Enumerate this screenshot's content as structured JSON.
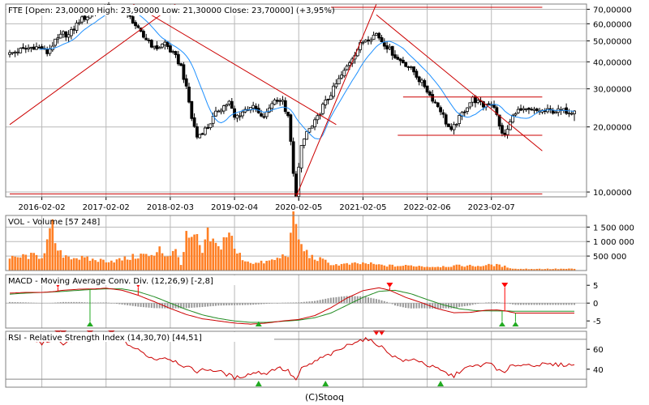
{
  "header": {
    "ticker": "FTE",
    "ohlc_text": "FTE [Open: 23,00000  High: 23,90000  Low: 21,30000  Close: 23,70000] (+3,95%)"
  },
  "footer": {
    "credit": "(C)Stooq"
  },
  "colors": {
    "up_candle": "#ffffff",
    "down_candle": "#000000",
    "moving_average": "#1e90ff",
    "trendline": "#cc0000",
    "volume_bar": "#ff7f24",
    "macd_line": "#cc0000",
    "signal_line": "#228b22",
    "histogram": "#999999",
    "rsi_line": "#cc0000",
    "sell_marker": "#ff0000",
    "buy_marker": "#22aa22",
    "grid": "#b8b8b8"
  },
  "chart_data": [
    {
      "type": "candlestick",
      "title": "FTE [Open: 23,00000  High: 23,90000  Low: 21,30000  Close: 23,70000] (+3,95%)",
      "scale": "log",
      "ylim": [
        9.5,
        74
      ],
      "y_ticks": [
        10,
        20,
        30,
        40,
        50,
        60,
        70
      ],
      "y_tick_labels": [
        "10,00000",
        "20,00000",
        "30,00000",
        "40,00000",
        "50,00000",
        "60,00000",
        "70,00000"
      ],
      "x_tick_labels": [
        "2016-02-02",
        "2017-02-02",
        "2018-02-03",
        "2019-02-04",
        "2020-02-05",
        "2021-02-05",
        "2022-02-06",
        "2023-02-07"
      ],
      "x_tick_indices": [
        12,
        36,
        60,
        84,
        108,
        132,
        156,
        180
      ],
      "first_index": 0,
      "last_index": 211,
      "last": {
        "open": 23.0,
        "high": 23.9,
        "low": 21.3,
        "close": 23.7,
        "change_pct": 3.95
      },
      "grid": true,
      "moving_average_period": 12,
      "anchors": [
        [
          0,
          43.5
        ],
        [
          3,
          45
        ],
        [
          6,
          46
        ],
        [
          9,
          47
        ],
        [
          12,
          46
        ],
        [
          14,
          44
        ],
        [
          16,
          48
        ],
        [
          18,
          51
        ],
        [
          20,
          54
        ],
        [
          22,
          53
        ],
        [
          24,
          57
        ],
        [
          26,
          62
        ],
        [
          28,
          64
        ],
        [
          30,
          66
        ],
        [
          32,
          68
        ],
        [
          34,
          70
        ],
        [
          36,
          72
        ],
        [
          38,
          71
        ],
        [
          40,
          68
        ],
        [
          42,
          70
        ],
        [
          44,
          66
        ],
        [
          46,
          62
        ],
        [
          48,
          56
        ],
        [
          50,
          52
        ],
        [
          52,
          50
        ],
        [
          54,
          46
        ],
        [
          56,
          47
        ],
        [
          58,
          49
        ],
        [
          60,
          45
        ],
        [
          62,
          42
        ],
        [
          64,
          38
        ],
        [
          66,
          30
        ],
        [
          68,
          22
        ],
        [
          70,
          18
        ],
        [
          72,
          19
        ],
        [
          74,
          20
        ],
        [
          76,
          22
        ],
        [
          78,
          24
        ],
        [
          80,
          25
        ],
        [
          82,
          26
        ],
        [
          84,
          22
        ],
        [
          86,
          23
        ],
        [
          88,
          24
        ],
        [
          90,
          25
        ],
        [
          92,
          24
        ],
        [
          94,
          22
        ],
        [
          96,
          23
        ],
        [
          98,
          26
        ],
        [
          100,
          27
        ],
        [
          102,
          26
        ],
        [
          104,
          22
        ],
        [
          106,
          12
        ],
        [
          107,
          9.8
        ],
        [
          109,
          16
        ],
        [
          111,
          19
        ],
        [
          113,
          20
        ],
        [
          115,
          22
        ],
        [
          117,
          25
        ],
        [
          119,
          27
        ],
        [
          121,
          30
        ],
        [
          123,
          33
        ],
        [
          125,
          36
        ],
        [
          127,
          40
        ],
        [
          129,
          44
        ],
        [
          131,
          48
        ],
        [
          133,
          51
        ],
        [
          135,
          52
        ],
        [
          137,
          54
        ],
        [
          139,
          50
        ],
        [
          141,
          47
        ],
        [
          143,
          44
        ],
        [
          145,
          41
        ],
        [
          147,
          40
        ],
        [
          149,
          38
        ],
        [
          151,
          36
        ],
        [
          153,
          33
        ],
        [
          155,
          31
        ],
        [
          157,
          28
        ],
        [
          159,
          26
        ],
        [
          161,
          24
        ],
        [
          163,
          21
        ],
        [
          165,
          19
        ],
        [
          167,
          21
        ],
        [
          169,
          23
        ],
        [
          171,
          25
        ],
        [
          173,
          27
        ],
        [
          175,
          26
        ],
        [
          177,
          25
        ],
        [
          179,
          26
        ],
        [
          181,
          25
        ],
        [
          183,
          20
        ],
        [
          185,
          18
        ],
        [
          187,
          21
        ],
        [
          189,
          23.7
        ]
      ],
      "trendlines": [
        {
          "from": [
            0,
            20.5
          ],
          "to": [
            62,
            74
          ]
        },
        {
          "from": [
            46,
            74
          ],
          "to": [
            122,
            20.5
          ]
        },
        {
          "from": [
            107,
            9.5
          ],
          "to": [
            137,
            74
          ]
        },
        {
          "from": [
            137,
            66
          ],
          "to": [
            199,
            15.5
          ]
        },
        {
          "from": [
            0,
            71.5
          ],
          "to": [
            199,
            71.5
          ]
        },
        {
          "from": [
            0,
            9.8
          ],
          "to": [
            199,
            9.8
          ]
        },
        {
          "from": [
            147,
            27.5
          ],
          "to": [
            199,
            27.5
          ]
        },
        {
          "from": [
            145,
            18.3
          ],
          "to": [
            199,
            18.3
          ]
        }
      ]
    },
    {
      "type": "bar",
      "title": "VOL - Volume [57 248]",
      "series_name": "Volume",
      "last_value": 57248,
      "ylim": [
        0,
        1900000
      ],
      "y_ticks": [
        500000,
        1000000,
        1500000
      ],
      "y_tick_labels": [
        "500 000",
        "1 000 000",
        "1 500 000"
      ],
      "anchors": [
        [
          0,
          400000
        ],
        [
          6,
          500000
        ],
        [
          12,
          500000
        ],
        [
          16,
          1450000
        ],
        [
          18,
          600000
        ],
        [
          22,
          500000
        ],
        [
          28,
          400000
        ],
        [
          34,
          350000
        ],
        [
          40,
          350000
        ],
        [
          44,
          420000
        ],
        [
          50,
          550000
        ],
        [
          54,
          450000
        ],
        [
          56,
          900000
        ],
        [
          58,
          500000
        ],
        [
          62,
          650000
        ],
        [
          64,
          250000
        ],
        [
          66,
          1100000
        ],
        [
          70,
          1050000
        ],
        [
          72,
          600000
        ],
        [
          74,
          1200000
        ],
        [
          78,
          750000
        ],
        [
          82,
          1400000
        ],
        [
          84,
          700000
        ],
        [
          88,
          350000
        ],
        [
          92,
          250000
        ],
        [
          96,
          300000
        ],
        [
          100,
          400000
        ],
        [
          104,
          600000
        ],
        [
          106,
          1650000
        ],
        [
          107,
          1550000
        ],
        [
          109,
          800000
        ],
        [
          113,
          450000
        ],
        [
          117,
          350000
        ],
        [
          121,
          200000
        ],
        [
          127,
          220000
        ],
        [
          133,
          250000
        ],
        [
          139,
          180000
        ],
        [
          145,
          160000
        ],
        [
          151,
          170000
        ],
        [
          157,
          130000
        ],
        [
          163,
          150000
        ],
        [
          169,
          170000
        ],
        [
          175,
          160000
        ],
        [
          181,
          200000
        ],
        [
          185,
          140000
        ],
        [
          189,
          57248
        ]
      ]
    },
    {
      "type": "line",
      "title": "MACD - Moving Average Conv. Div. (12,26,9) [-2,8]",
      "series": [
        {
          "name": "MACD",
          "value_last": -2.8,
          "role": "macd"
        },
        {
          "name": "Signal",
          "role": "signal"
        },
        {
          "name": "Histogram",
          "role": "histogram"
        }
      ],
      "ylim": [
        -7,
        8
      ],
      "y_ticks": [
        -5,
        0,
        5
      ],
      "y_tick_labels": [
        "-5",
        "0",
        "5"
      ],
      "reference_line": 0,
      "macd_anchors": [
        [
          0,
          2.8
        ],
        [
          6,
          3.0
        ],
        [
          12,
          3.0
        ],
        [
          16,
          3.2
        ],
        [
          20,
          3.6
        ],
        [
          26,
          3.9
        ],
        [
          32,
          4.0
        ],
        [
          36,
          4.2
        ],
        [
          42,
          3.6
        ],
        [
          48,
          2.2
        ],
        [
          54,
          0.4
        ],
        [
          60,
          -1.5
        ],
        [
          66,
          -3.2
        ],
        [
          72,
          -4.4
        ],
        [
          78,
          -5.0
        ],
        [
          84,
          -5.6
        ],
        [
          90,
          -5.9
        ],
        [
          96,
          -5.6
        ],
        [
          102,
          -5.0
        ],
        [
          108,
          -4.6
        ],
        [
          114,
          -3.5
        ],
        [
          120,
          -1.3
        ],
        [
          126,
          1.4
        ],
        [
          132,
          3.5
        ],
        [
          138,
          4.3
        ],
        [
          142,
          3.6
        ],
        [
          148,
          1.6
        ],
        [
          154,
          0.1
        ],
        [
          160,
          -1.6
        ],
        [
          166,
          -2.7
        ],
        [
          172,
          -2.6
        ],
        [
          178,
          -2.0
        ],
        [
          182,
          -1.9
        ],
        [
          186,
          -2.3
        ],
        [
          189,
          -2.8
        ]
      ],
      "signal_anchors": [
        [
          0,
          2.5
        ],
        [
          6,
          2.8
        ],
        [
          12,
          3.0
        ],
        [
          18,
          3.2
        ],
        [
          24,
          3.5
        ],
        [
          30,
          3.8
        ],
        [
          36,
          4.0
        ],
        [
          42,
          4.0
        ],
        [
          48,
          3.2
        ],
        [
          54,
          1.8
        ],
        [
          60,
          0.0
        ],
        [
          66,
          -1.8
        ],
        [
          72,
          -3.3
        ],
        [
          78,
          -4.3
        ],
        [
          84,
          -5.0
        ],
        [
          90,
          -5.4
        ],
        [
          96,
          -5.4
        ],
        [
          102,
          -5.1
        ],
        [
          108,
          -4.8
        ],
        [
          114,
          -4.1
        ],
        [
          120,
          -2.8
        ],
        [
          126,
          -0.6
        ],
        [
          132,
          1.6
        ],
        [
          138,
          3.3
        ],
        [
          144,
          3.6
        ],
        [
          150,
          2.6
        ],
        [
          156,
          1.0
        ],
        [
          162,
          -0.5
        ],
        [
          168,
          -1.6
        ],
        [
          174,
          -2.1
        ],
        [
          180,
          -2.2
        ],
        [
          186,
          -2.2
        ],
        [
          189,
          -2.3
        ]
      ],
      "sell_signals": [
        18,
        48,
        142,
        185
      ],
      "buy_signals": [
        30,
        93,
        184,
        189
      ]
    },
    {
      "type": "line",
      "title": "RSI - Relative Strength Index (14,30,70) [44,51]",
      "series_name": "RSI",
      "last_value": 44.51,
      "ylim": [
        22,
        78
      ],
      "y_ticks": [
        40,
        60
      ],
      "y_tick_labels": [
        "40",
        "60"
      ],
      "levels": [
        30,
        70
      ],
      "anchors": [
        [
          0,
          72
        ],
        [
          5,
          70
        ],
        [
          8,
          71
        ],
        [
          10,
          68
        ],
        [
          12,
          66
        ],
        [
          16,
          70
        ],
        [
          20,
          66
        ],
        [
          24,
          70
        ],
        [
          28,
          71
        ],
        [
          32,
          68
        ],
        [
          36,
          70
        ],
        [
          40,
          71
        ],
        [
          42,
          69
        ],
        [
          46,
          62
        ],
        [
          50,
          56
        ],
        [
          54,
          50
        ],
        [
          58,
          52
        ],
        [
          62,
          48
        ],
        [
          66,
          42
        ],
        [
          70,
          38
        ],
        [
          74,
          40
        ],
        [
          78,
          38
        ],
        [
          82,
          34
        ],
        [
          84,
          31
        ],
        [
          88,
          34
        ],
        [
          92,
          37
        ],
        [
          96,
          36
        ],
        [
          100,
          42
        ],
        [
          104,
          38
        ],
        [
          106,
          32
        ],
        [
          107,
          29
        ],
        [
          109,
          40
        ],
        [
          113,
          46
        ],
        [
          117,
          52
        ],
        [
          121,
          56
        ],
        [
          125,
          62
        ],
        [
          129,
          68
        ],
        [
          133,
          70
        ],
        [
          137,
          66
        ],
        [
          140,
          60
        ],
        [
          144,
          52
        ],
        [
          148,
          48
        ],
        [
          152,
          50
        ],
        [
          156,
          44
        ],
        [
          160,
          40
        ],
        [
          163,
          36
        ],
        [
          166,
          33
        ],
        [
          169,
          40
        ],
        [
          172,
          42
        ],
        [
          176,
          44
        ],
        [
          180,
          46
        ],
        [
          183,
          38
        ],
        [
          185,
          36
        ],
        [
          187,
          42
        ],
        [
          189,
          44.51
        ]
      ],
      "sell_signals": [
        18,
        20,
        30,
        38,
        137,
        139
      ],
      "buy_signals": [
        93,
        118,
        161
      ]
    }
  ]
}
